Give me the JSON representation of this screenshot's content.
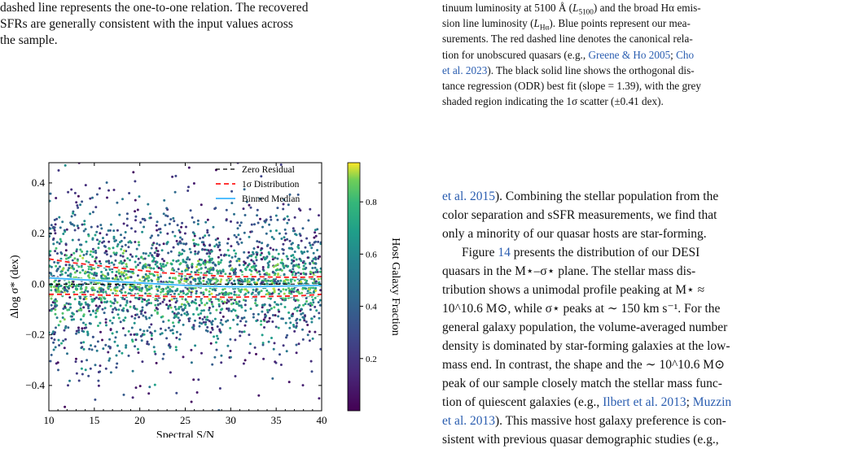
{
  "left_text": {
    "line1": "dashed line represents the one-to-one relation. The recovered",
    "line2": "SFRs are generally consistent with the input values across",
    "line3": "the sample."
  },
  "right_caption": {
    "l1a": "tinuum luminosity at 5100 Å (",
    "l1b": ") and the broad Hα emis-",
    "l2a": "sion line luminosity (",
    "l2b": "). Blue points represent our mea-",
    "l3": "surements. The red dashed line denotes the canonical rela-",
    "l4a": "tion for unobscured quasars (e.g., ",
    "cite1": "Greene & Ho 2005",
    "sep": "; ",
    "cite2": "Cho",
    "cite2b": "et al. 2023",
    "l5b": "). The black solid line shows the orthogonal dis-",
    "l6": "tance regression (ODR) best fit (slope = 1.39), with the grey",
    "l7": "shaded region indicating the 1σ scatter (±0.41 dex)."
  },
  "right_body": {
    "cite0": "et al. 2015",
    "p1a": "). Combining the stellar population from the",
    "p1b": "color separation and sSFR measurements, we find that",
    "p1c": "only a minority of our quasar hosts are star-forming.",
    "p2a": "Figure ",
    "fig_ref": "14",
    "p2b": " presents the distribution of our DESI",
    "p2c": "quasars in the M⋆–σ⋆ plane. The stellar mass dis-",
    "p2d": "tribution shows a unimodal profile peaking at M⋆ ≈",
    "p2e": "10^10.6 M⊙, while σ⋆ peaks at ∼ 150 km s⁻¹. For the",
    "p2f": "general galaxy population, the volume-averaged number",
    "p2g": "density is dominated by star-forming galaxies at the low-",
    "p2h": "mass end. In contrast, the shape and the ∼ 10^10.6 M⊙",
    "p2i": "peak of our sample closely match the stellar mass func-",
    "p2j_a": "tion of quiescent galaxies (e.g., ",
    "cite3": "Ilbert et al. 2013",
    "cite4": "Muzzin",
    "cite4b": "et al. 2013",
    "p2k": "). This massive host galaxy preference is con-",
    "p2l": "sistent with previous quasar demographic studies (e.g.,"
  },
  "chart_data": {
    "type": "scatter",
    "xlabel": "Spectral S/N",
    "ylabel": "Δlog σ* (dex)",
    "xlim": [
      10,
      40
    ],
    "ylim": [
      -0.5,
      0.48
    ],
    "xticks": [
      10,
      15,
      20,
      25,
      30,
      35,
      40
    ],
    "yticks": [
      -0.4,
      -0.2,
      0.0,
      0.2,
      0.4
    ],
    "colorbar": {
      "label": "Host Galaxy Fraction",
      "ticks": [
        0.2,
        0.4,
        0.6,
        0.8
      ],
      "range": [
        0.0,
        0.95
      ]
    },
    "legend": {
      "placement": "top-right",
      "entries": [
        "Zero Residual",
        "1σ Distribution",
        "Binned Median"
      ]
    },
    "series": [
      {
        "name": "Binned Median",
        "x": [
          10,
          12.5,
          15,
          17.5,
          20,
          22.5,
          25,
          27.5,
          30,
          32.5,
          35,
          37.5,
          40
        ],
        "values": [
          0.025,
          0.02,
          0.015,
          0.01,
          0.005,
          0.0,
          -0.005,
          -0.008,
          -0.01,
          -0.01,
          -0.008,
          -0.006,
          -0.005
        ]
      },
      {
        "name": "1σ Distribution",
        "x": [
          10,
          12.5,
          15,
          17.5,
          20,
          22.5,
          25,
          27.5,
          30,
          32.5,
          35,
          37.5,
          40
        ],
        "upper": [
          0.1,
          0.085,
          0.075,
          0.065,
          0.055,
          0.045,
          0.04,
          0.035,
          0.03,
          0.03,
          0.028,
          0.027,
          0.03
        ],
        "lower": [
          -0.04,
          -0.04,
          -0.042,
          -0.045,
          -0.045,
          -0.048,
          -0.05,
          -0.05,
          -0.052,
          -0.05,
          -0.048,
          -0.046,
          -0.04
        ]
      }
    ],
    "colors": {
      "median": "#3ab6ff",
      "sigma": "#ff1a1a",
      "zero": "#000000"
    }
  }
}
